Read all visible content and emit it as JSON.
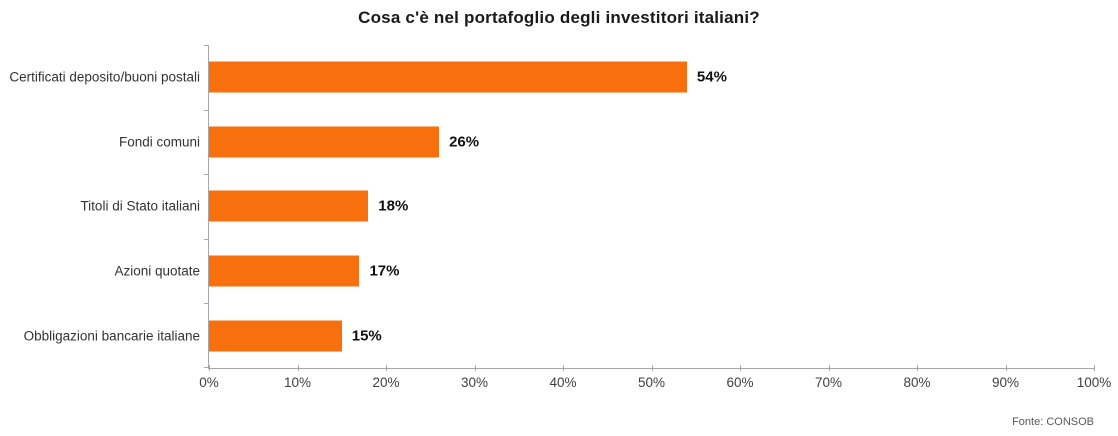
{
  "chart_data": {
    "type": "bar",
    "orientation": "horizontal",
    "title": "Cosa c'è nel portafoglio degli investitori italiani?",
    "categories": [
      "Certificati deposito/buoni postali",
      "Fondi comuni",
      "Titoli di Stato italiani",
      "Azioni quotate",
      "Obbligazioni bancarie italiane"
    ],
    "values": [
      54,
      26,
      18,
      17,
      15
    ],
    "value_labels": [
      "54%",
      "26%",
      "18%",
      "17%",
      "15%"
    ],
    "x_ticks": [
      "0%",
      "10%",
      "20%",
      "30%",
      "40%",
      "50%",
      "60%",
      "70%",
      "80%",
      "90%",
      "100%"
    ],
    "xlim": [
      0,
      100
    ],
    "grid": false,
    "legend": "none",
    "bar_color": "#f7700d",
    "axis_color": "#a6a6a6",
    "source": "Fonte: CONSOB"
  }
}
